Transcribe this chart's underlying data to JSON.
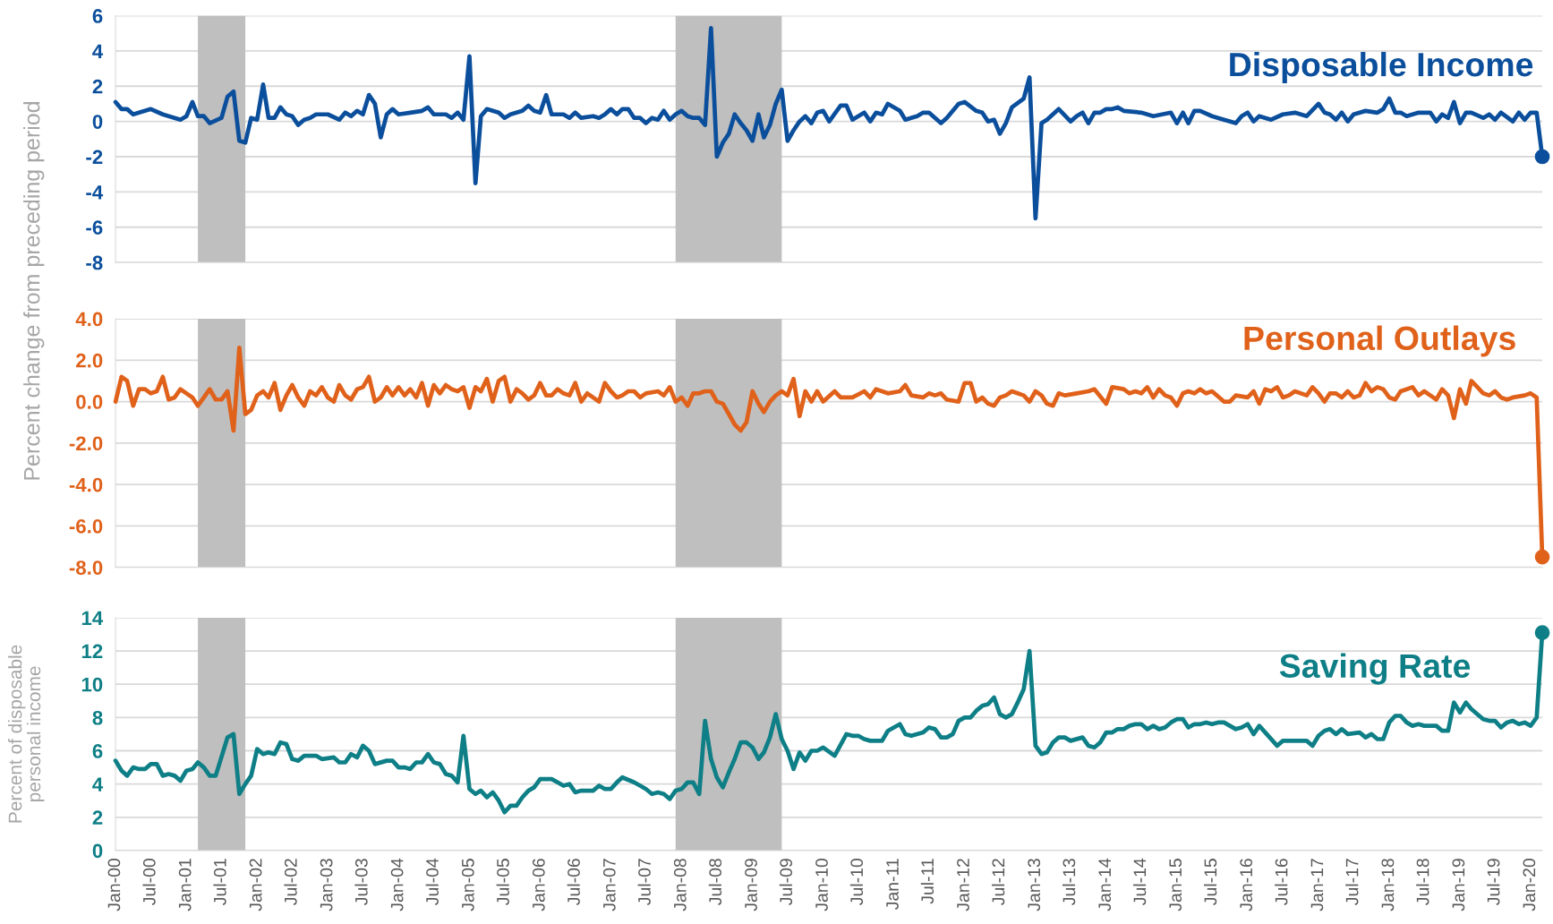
{
  "chart_data": [
    {
      "type": "line",
      "ylabel": "Percent change from preceding period",
      "tick_labels": "y",
      "grid": "y",
      "xlim": [
        "2000-01",
        "2020-03"
      ],
      "ylim": [
        -8,
        6
      ],
      "yticks": [
        -8,
        -6,
        -4,
        -2,
        0,
        2,
        4,
        6
      ],
      "bands": [
        {
          "axis": "x",
          "from": "2001-03",
          "to": "2001-11",
          "color": "#bfbfbf"
        },
        {
          "axis": "x",
          "from": "2007-12",
          "to": "2009-06",
          "color": "#bfbfbf"
        }
      ],
      "series": [
        {
          "name": "Disposable Income",
          "color": "#0b4f9c",
          "line_style": "solid",
          "x": [
            "2000-01",
            "2000-02",
            "2000-03",
            "2000-04",
            "2000-05",
            "2000-07",
            "2000-09",
            "2000-12",
            "2001-01",
            "2001-02",
            "2001-03",
            "2001-04",
            "2001-05",
            "2001-07",
            "2001-08",
            "2001-09",
            "2001-10",
            "2001-11",
            "2001-12",
            "2002-01",
            "2002-02",
            "2002-03",
            "2002-04",
            "2002-05",
            "2002-06",
            "2002-07",
            "2002-08",
            "2002-09",
            "2002-10",
            "2002-11",
            "2003-01",
            "2003-03",
            "2003-04",
            "2003-05",
            "2003-06",
            "2003-07",
            "2003-08",
            "2003-09",
            "2003-10",
            "2003-11",
            "2003-12",
            "2004-01",
            "2004-03",
            "2004-05",
            "2004-06",
            "2004-07",
            "2004-09",
            "2004-10",
            "2004-11",
            "2004-12",
            "2005-01",
            "2005-02",
            "2005-03",
            "2005-04",
            "2005-06",
            "2005-07",
            "2005-08",
            "2005-10",
            "2005-11",
            "2005-12",
            "2006-01",
            "2006-02",
            "2006-03",
            "2006-05",
            "2006-06",
            "2006-07",
            "2006-08",
            "2006-10",
            "2006-11",
            "2006-12",
            "2007-01",
            "2007-02",
            "2007-03",
            "2007-04",
            "2007-05",
            "2007-06",
            "2007-07",
            "2007-08",
            "2007-09",
            "2007-10",
            "2007-11",
            "2007-12",
            "2008-01",
            "2008-02",
            "2008-03",
            "2008-04",
            "2008-05",
            "2008-06",
            "2008-07",
            "2008-08",
            "2008-09",
            "2008-10",
            "2008-11",
            "2008-12",
            "2009-01",
            "2009-02",
            "2009-03",
            "2009-04",
            "2009-05",
            "2009-06",
            "2009-07",
            "2009-08",
            "2009-09",
            "2009-10",
            "2009-11",
            "2009-12",
            "2010-01",
            "2010-02",
            "2010-04",
            "2010-05",
            "2010-06",
            "2010-08",
            "2010-09",
            "2010-10",
            "2010-11",
            "2010-12",
            "2011-02",
            "2011-03",
            "2011-05",
            "2011-06",
            "2011-07",
            "2011-09",
            "2011-10",
            "2011-12",
            "2012-01",
            "2012-03",
            "2012-04",
            "2012-05",
            "2012-06",
            "2012-07",
            "2012-08",
            "2012-09",
            "2012-11",
            "2012-12",
            "2013-01",
            "2013-02",
            "2013-03",
            "2013-05",
            "2013-07",
            "2013-08",
            "2013-09",
            "2013-10",
            "2013-11",
            "2013-12",
            "2014-01",
            "2014-02",
            "2014-03",
            "2014-04",
            "2014-07",
            "2014-09",
            "2014-12",
            "2015-01",
            "2015-02",
            "2015-03",
            "2015-04",
            "2015-05",
            "2015-07",
            "2015-09",
            "2015-11",
            "2015-12",
            "2016-01",
            "2016-02",
            "2016-03",
            "2016-05",
            "2016-07",
            "2016-09",
            "2016-11",
            "2017-01",
            "2017-02",
            "2017-03",
            "2017-04",
            "2017-05",
            "2017-06",
            "2017-07",
            "2017-09",
            "2017-11",
            "2017-12",
            "2018-01",
            "2018-02",
            "2018-03",
            "2018-04",
            "2018-06",
            "2018-08",
            "2018-09",
            "2018-10",
            "2018-11",
            "2018-12",
            "2019-01",
            "2019-02",
            "2019-03",
            "2019-05",
            "2019-06",
            "2019-07",
            "2019-08",
            "2019-10",
            "2019-11",
            "2019-12",
            "2020-01",
            "2020-02",
            "2020-03"
          ],
          "values": [
            1.1,
            0.7,
            0.7,
            0.4,
            0.5,
            0.7,
            0.4,
            0.1,
            0.3,
            1.1,
            0.3,
            0.3,
            -0.1,
            0.2,
            1.4,
            1.7,
            -1.1,
            -1.2,
            0.2,
            0.1,
            2.1,
            0.2,
            0.2,
            0.8,
            0.4,
            0.3,
            -0.2,
            0.1,
            0.2,
            0.4,
            0.4,
            0.1,
            0.5,
            0.3,
            0.6,
            0.4,
            1.5,
            1.0,
            -0.9,
            0.4,
            0.7,
            0.4,
            0.5,
            0.6,
            0.8,
            0.4,
            0.4,
            0.2,
            0.5,
            0.1,
            3.7,
            -3.5,
            0.3,
            0.7,
            0.5,
            0.2,
            0.4,
            0.6,
            0.9,
            0.6,
            0.5,
            1.5,
            0.4,
            0.4,
            0.2,
            0.5,
            0.2,
            0.3,
            0.2,
            0.4,
            0.7,
            0.4,
            0.7,
            0.7,
            0.2,
            0.2,
            -0.1,
            0.2,
            0.1,
            0.6,
            0.1,
            0.4,
            0.6,
            0.3,
            0.2,
            0.2,
            -0.2,
            5.3,
            -2.0,
            -1.2,
            -0.7,
            0.4,
            -0.1,
            -0.5,
            -1.1,
            0.4,
            -0.9,
            -0.2,
            1.0,
            1.8,
            -1.1,
            -0.5,
            0.0,
            0.3,
            -0.1,
            0.5,
            0.6,
            0.0,
            0.9,
            0.9,
            0.1,
            0.5,
            0.0,
            0.5,
            0.4,
            1.0,
            0.6,
            0.1,
            0.3,
            0.5,
            0.5,
            -0.1,
            0.2,
            1.0,
            1.1,
            0.6,
            0.5,
            0.0,
            0.1,
            -0.7,
            -0.1,
            0.8,
            1.3,
            2.5,
            -5.5,
            -0.1,
            0.1,
            0.7,
            0.0,
            0.3,
            0.5,
            -0.1,
            0.5,
            0.5,
            0.7,
            0.7,
            0.8,
            0.6,
            0.5,
            0.3,
            0.5,
            -0.1,
            0.5,
            -0.1,
            0.6,
            0.6,
            0.3,
            0.1,
            -0.1,
            0.3,
            0.5,
            0.0,
            0.3,
            0.1,
            0.4,
            0.5,
            0.3,
            1.0,
            0.5,
            0.4,
            0.1,
            0.5,
            0.0,
            0.4,
            0.6,
            0.5,
            0.7,
            1.3,
            0.5,
            0.5,
            0.3,
            0.5,
            0.5,
            0.0,
            0.4,
            0.2,
            1.1,
            -0.1,
            0.5,
            0.5,
            0.2,
            0.4,
            0.1,
            0.5,
            0.0,
            0.5,
            0.1,
            0.5,
            0.5,
            -2.0
          ]
        }
      ]
    },
    {
      "type": "line",
      "tick_labels": "y",
      "grid": "y",
      "xlim": [
        "2000-01",
        "2020-03"
      ],
      "ylim": [
        -8,
        4
      ],
      "yticks": [
        {
          "value": -8,
          "label": "-8.0"
        },
        {
          "value": -6,
          "label": "-6.0"
        },
        {
          "value": -4,
          "label": "-4.0"
        },
        {
          "value": -2,
          "label": "-2.0"
        },
        {
          "value": 0,
          "label": "0.0"
        },
        {
          "value": 2,
          "label": "2.0"
        },
        {
          "value": 4,
          "label": "4.0"
        }
      ],
      "bands": [
        {
          "axis": "x",
          "from": "2001-03",
          "to": "2001-11",
          "color": "#bfbfbf"
        },
        {
          "axis": "x",
          "from": "2007-12",
          "to": "2009-06",
          "color": "#bfbfbf"
        }
      ],
      "series": [
        {
          "name": "Personal Outlays",
          "color": "#e0611a",
          "line_style": "solid",
          "x": [
            "2000-01",
            "2000-02",
            "2000-03",
            "2000-04",
            "2000-05",
            "2000-06",
            "2000-07",
            "2000-08",
            "2000-09",
            "2000-10",
            "2000-11",
            "2000-12",
            "2001-01",
            "2001-02",
            "2001-03",
            "2001-04",
            "2001-05",
            "2001-06",
            "2001-07",
            "2001-08",
            "2001-09",
            "2001-10",
            "2001-11",
            "2001-12",
            "2002-01",
            "2002-02",
            "2002-03",
            "2002-04",
            "2002-05",
            "2002-06",
            "2002-07",
            "2002-08",
            "2002-09",
            "2002-10",
            "2002-11",
            "2002-12",
            "2003-01",
            "2003-02",
            "2003-03",
            "2003-04",
            "2003-05",
            "2003-06",
            "2003-07",
            "2003-08",
            "2003-09",
            "2003-10",
            "2003-11",
            "2003-12",
            "2004-01",
            "2004-02",
            "2004-03",
            "2004-04",
            "2004-05",
            "2004-06",
            "2004-07",
            "2004-08",
            "2004-09",
            "2004-10",
            "2004-11",
            "2004-12",
            "2005-01",
            "2005-02",
            "2005-03",
            "2005-04",
            "2005-05",
            "2005-06",
            "2005-07",
            "2005-08",
            "2005-09",
            "2005-10",
            "2005-11",
            "2005-12",
            "2006-01",
            "2006-02",
            "2006-03",
            "2006-04",
            "2006-05",
            "2006-06",
            "2006-07",
            "2006-08",
            "2006-09",
            "2006-10",
            "2006-11",
            "2006-12",
            "2007-01",
            "2007-02",
            "2007-03",
            "2007-04",
            "2007-05",
            "2007-06",
            "2007-07",
            "2007-09",
            "2007-10",
            "2007-11",
            "2007-12",
            "2008-01",
            "2008-02",
            "2008-03",
            "2008-04",
            "2008-05",
            "2008-06",
            "2008-07",
            "2008-08",
            "2008-09",
            "2008-10",
            "2008-11",
            "2008-12",
            "2009-01",
            "2009-02",
            "2009-03",
            "2009-04",
            "2009-05",
            "2009-06",
            "2009-07",
            "2009-08",
            "2009-09",
            "2009-10",
            "2009-11",
            "2009-12",
            "2010-01",
            "2010-03",
            "2010-04",
            "2010-06",
            "2010-08",
            "2010-09",
            "2010-10",
            "2010-12",
            "2011-02",
            "2011-03",
            "2011-04",
            "2011-06",
            "2011-07",
            "2011-08",
            "2011-09",
            "2011-10",
            "2011-12",
            "2012-01",
            "2012-02",
            "2012-03",
            "2012-04",
            "2012-05",
            "2012-06",
            "2012-07",
            "2012-08",
            "2012-09",
            "2012-10",
            "2012-11",
            "2012-12",
            "2013-01",
            "2013-02",
            "2013-03",
            "2013-04",
            "2013-05",
            "2013-06",
            "2013-08",
            "2013-10",
            "2013-11",
            "2014-01",
            "2014-02",
            "2014-04",
            "2014-05",
            "2014-06",
            "2014-07",
            "2014-08",
            "2014-09",
            "2014-10",
            "2014-11",
            "2014-12",
            "2015-01",
            "2015-02",
            "2015-03",
            "2015-04",
            "2015-05",
            "2015-06",
            "2015-07",
            "2015-09",
            "2015-10",
            "2015-11",
            "2016-01",
            "2016-02",
            "2016-03",
            "2016-04",
            "2016-05",
            "2016-06",
            "2016-07",
            "2016-08",
            "2016-09",
            "2016-11",
            "2016-12",
            "2017-01",
            "2017-02",
            "2017-03",
            "2017-04",
            "2017-05",
            "2017-06",
            "2017-07",
            "2017-08",
            "2017-09",
            "2017-10",
            "2017-11",
            "2017-12",
            "2018-01",
            "2018-02",
            "2018-03",
            "2018-04",
            "2018-05",
            "2018-06",
            "2018-07",
            "2018-08",
            "2018-09",
            "2018-10",
            "2018-11",
            "2018-12",
            "2019-01",
            "2019-02",
            "2019-03",
            "2019-04",
            "2019-05",
            "2019-06",
            "2019-07",
            "2019-08",
            "2019-09",
            "2019-10",
            "2019-12",
            "2020-01",
            "2020-02",
            "2020-03"
          ],
          "values": [
            0.0,
            1.2,
            1.0,
            -0.2,
            0.6,
            0.6,
            0.4,
            0.5,
            1.2,
            0.1,
            0.2,
            0.6,
            0.4,
            0.2,
            -0.2,
            0.2,
            0.6,
            0.1,
            0.1,
            0.5,
            -1.4,
            2.6,
            -0.6,
            -0.4,
            0.3,
            0.5,
            0.2,
            0.9,
            -0.4,
            0.3,
            0.8,
            0.2,
            -0.2,
            0.5,
            0.3,
            0.7,
            0.2,
            0.0,
            0.8,
            0.3,
            0.1,
            0.6,
            0.7,
            1.2,
            0.0,
            0.2,
            0.7,
            0.3,
            0.7,
            0.3,
            0.6,
            0.2,
            0.9,
            -0.2,
            0.8,
            0.4,
            0.8,
            0.6,
            0.5,
            0.7,
            -0.3,
            0.7,
            0.5,
            1.1,
            0.0,
            1.0,
            1.2,
            0.0,
            0.6,
            0.4,
            0.1,
            0.3,
            0.9,
            0.3,
            0.3,
            0.6,
            0.4,
            0.3,
            0.9,
            0.0,
            0.4,
            0.2,
            0.0,
            0.9,
            0.5,
            0.2,
            0.3,
            0.5,
            0.5,
            0.2,
            0.4,
            0.5,
            0.3,
            0.7,
            0.0,
            0.2,
            -0.2,
            0.4,
            0.4,
            0.5,
            0.5,
            0.0,
            -0.1,
            -0.6,
            -1.1,
            -1.4,
            -1.0,
            0.5,
            -0.1,
            -0.5,
            0.0,
            0.3,
            0.5,
            0.3,
            1.1,
            -0.7,
            0.5,
            0.0,
            0.5,
            0.0,
            0.5,
            0.2,
            0.2,
            0.5,
            0.2,
            0.6,
            0.4,
            0.5,
            0.8,
            0.3,
            0.2,
            0.4,
            0.3,
            0.4,
            0.1,
            0.0,
            0.9,
            0.9,
            0.0,
            0.2,
            -0.1,
            -0.2,
            0.2,
            0.3,
            0.5,
            0.4,
            0.3,
            0.0,
            0.5,
            0.3,
            -0.1,
            -0.2,
            0.4,
            0.3,
            0.4,
            0.5,
            0.6,
            -0.1,
            0.7,
            0.6,
            0.4,
            0.5,
            0.4,
            0.7,
            0.2,
            0.6,
            0.3,
            0.2,
            -0.2,
            0.4,
            0.5,
            0.4,
            0.6,
            0.4,
            0.5,
            0.0,
            0.0,
            0.3,
            0.2,
            0.5,
            -0.1,
            0.6,
            0.5,
            0.7,
            0.2,
            0.3,
            0.5,
            0.3,
            0.7,
            0.4,
            0.0,
            0.4,
            0.4,
            0.2,
            0.5,
            0.2,
            0.3,
            0.9,
            0.5,
            0.7,
            0.6,
            0.2,
            0.1,
            0.5,
            0.6,
            0.7,
            0.3,
            0.5,
            0.3,
            0.1,
            0.6,
            0.3,
            -0.8,
            0.6,
            -0.1,
            1.0,
            0.7,
            0.4,
            0.3,
            0.5,
            0.2,
            0.1,
            0.2,
            0.3,
            0.4,
            0.2,
            -7.5
          ]
        }
      ]
    },
    {
      "type": "line",
      "ylabel": "Percent of disposable\npersonal income",
      "grid": "y",
      "xlim": [
        "2000-01",
        "2020-03"
      ],
      "ylim": [
        0,
        14
      ],
      "yticks": [
        0,
        2,
        4,
        6,
        8,
        10,
        12,
        14
      ],
      "xticks": [
        {
          "value": "2000-01",
          "label": "Jan-00"
        },
        {
          "value": "2000-07",
          "label": "Jul-00"
        },
        {
          "value": "2001-01",
          "label": "Jan-01"
        },
        {
          "value": "2001-07",
          "label": "Jul-01"
        },
        {
          "value": "2002-01",
          "label": "Jan-02"
        },
        {
          "value": "2002-07",
          "label": "Jul-02"
        },
        {
          "value": "2003-01",
          "label": "Jan-03"
        },
        {
          "value": "2003-07",
          "label": "Jul-03"
        },
        {
          "value": "2004-01",
          "label": "Jan-04"
        },
        {
          "value": "2004-07",
          "label": "Jul-04"
        },
        {
          "value": "2005-01",
          "label": "Jan-05"
        },
        {
          "value": "2005-07",
          "label": "Jul-05"
        },
        {
          "value": "2006-01",
          "label": "Jan-06"
        },
        {
          "value": "2006-07",
          "label": "Jul-06"
        },
        {
          "value": "2007-01",
          "label": "Jan-07"
        },
        {
          "value": "2007-07",
          "label": "Jul-07"
        },
        {
          "value": "2008-01",
          "label": "Jan-08"
        },
        {
          "value": "2008-07",
          "label": "Jul-08"
        },
        {
          "value": "2009-01",
          "label": "Jan-09"
        },
        {
          "value": "2009-07",
          "label": "Jul-09"
        },
        {
          "value": "2010-01",
          "label": "Jan-10"
        },
        {
          "value": "2010-07",
          "label": "Jul-10"
        },
        {
          "value": "2011-01",
          "label": "Jan-11"
        },
        {
          "value": "2011-07",
          "label": "Jul-11"
        },
        {
          "value": "2012-01",
          "label": "Jan-12"
        },
        {
          "value": "2012-07",
          "label": "Jul-12"
        },
        {
          "value": "2013-01",
          "label": "Jan-13"
        },
        {
          "value": "2013-07",
          "label": "Jul-13"
        },
        {
          "value": "2014-01",
          "label": "Jan-14"
        },
        {
          "value": "2014-07",
          "label": "Jul-14"
        },
        {
          "value": "2015-01",
          "label": "Jan-15"
        },
        {
          "value": "2015-07",
          "label": "Jul-15"
        },
        {
          "value": "2016-01",
          "label": "Jan-16"
        },
        {
          "value": "2016-07",
          "label": "Jul-16"
        },
        {
          "value": "2017-01",
          "label": "Jan-17"
        },
        {
          "value": "2017-07",
          "label": "Jul-17"
        },
        {
          "value": "2018-01",
          "label": "Jan-18"
        },
        {
          "value": "2018-07",
          "label": "Jul-18"
        },
        {
          "value": "2019-01",
          "label": "Jan-19"
        },
        {
          "value": "2019-07",
          "label": "Jul-19"
        },
        {
          "value": "2020-01",
          "label": "Jan-20"
        }
      ],
      "bands": [
        {
          "axis": "x",
          "from": "2001-03",
          "to": "2001-11",
          "color": "#bfbfbf"
        },
        {
          "axis": "x",
          "from": "2007-12",
          "to": "2009-06",
          "color": "#bfbfbf"
        }
      ],
      "series": [
        {
          "name": "Saving Rate",
          "color": "#0e7f86",
          "line_style": "solid",
          "x": [
            "2000-01",
            "2000-02",
            "2000-03",
            "2000-04",
            "2000-05",
            "2000-06",
            "2000-07",
            "2000-08",
            "2000-09",
            "2000-10",
            "2000-11",
            "2000-12",
            "2001-01",
            "2001-02",
            "2001-03",
            "2001-04",
            "2001-05",
            "2001-06",
            "2001-08",
            "2001-09",
            "2001-10",
            "2001-11",
            "2001-12",
            "2002-01",
            "2002-02",
            "2002-03",
            "2002-04",
            "2002-05",
            "2002-06",
            "2002-07",
            "2002-08",
            "2002-09",
            "2002-11",
            "2002-12",
            "2003-02",
            "2003-03",
            "2003-04",
            "2003-05",
            "2003-06",
            "2003-07",
            "2003-08",
            "2003-09",
            "2003-11",
            "2003-12",
            "2004-01",
            "2004-02",
            "2004-03",
            "2004-04",
            "2004-05",
            "2004-06",
            "2004-07",
            "2004-08",
            "2004-09",
            "2004-10",
            "2004-11",
            "2004-12",
            "2005-01",
            "2005-02",
            "2005-03",
            "2005-04",
            "2005-05",
            "2005-06",
            "2005-07",
            "2005-08",
            "2005-09",
            "2005-10",
            "2005-11",
            "2005-12",
            "2006-01",
            "2006-02",
            "2006-03",
            "2006-04",
            "2006-05",
            "2006-06",
            "2006-07",
            "2006-08",
            "2006-09",
            "2006-10",
            "2006-11",
            "2006-12",
            "2007-01",
            "2007-02",
            "2007-03",
            "2007-05",
            "2007-06",
            "2007-07",
            "2007-08",
            "2007-09",
            "2007-10",
            "2007-11",
            "2007-12",
            "2008-01",
            "2008-02",
            "2008-03",
            "2008-04",
            "2008-05",
            "2008-06",
            "2008-07",
            "2008-08",
            "2008-09",
            "2008-10",
            "2008-11",
            "2008-12",
            "2009-01",
            "2009-02",
            "2009-03",
            "2009-04",
            "2009-05",
            "2009-06",
            "2009-07",
            "2009-08",
            "2009-09",
            "2009-10",
            "2009-11",
            "2009-12",
            "2010-01",
            "2010-03",
            "2010-05",
            "2010-06",
            "2010-07",
            "2010-08",
            "2010-09",
            "2010-11",
            "2010-12",
            "2011-02",
            "2011-03",
            "2011-04",
            "2011-06",
            "2011-07",
            "2011-08",
            "2011-09",
            "2011-10",
            "2011-11",
            "2011-12",
            "2012-01",
            "2012-02",
            "2012-03",
            "2012-04",
            "2012-05",
            "2012-06",
            "2012-07",
            "2012-08",
            "2012-09",
            "2012-10",
            "2012-11",
            "2012-12",
            "2013-01",
            "2013-02",
            "2013-03",
            "2013-04",
            "2013-05",
            "2013-06",
            "2013-07",
            "2013-09",
            "2013-10",
            "2013-11",
            "2013-12",
            "2014-01",
            "2014-02",
            "2014-03",
            "2014-04",
            "2014-05",
            "2014-06",
            "2014-07",
            "2014-08",
            "2014-09",
            "2014-10",
            "2014-11",
            "2014-12",
            "2015-01",
            "2015-02",
            "2015-03",
            "2015-04",
            "2015-05",
            "2015-06",
            "2015-07",
            "2015-08",
            "2015-09",
            "2015-11",
            "2015-12",
            "2016-01",
            "2016-02",
            "2016-03",
            "2016-04",
            "2016-06",
            "2016-07",
            "2016-09",
            "2016-11",
            "2016-12",
            "2017-01",
            "2017-02",
            "2017-03",
            "2017-04",
            "2017-05",
            "2017-06",
            "2017-08",
            "2017-09",
            "2017-10",
            "2017-11",
            "2017-12",
            "2018-01",
            "2018-02",
            "2018-03",
            "2018-04",
            "2018-05",
            "2018-06",
            "2018-07",
            "2018-09",
            "2018-10",
            "2018-11",
            "2018-12",
            "2019-01",
            "2019-02",
            "2019-03",
            "2019-05",
            "2019-06",
            "2019-07",
            "2019-08",
            "2019-09",
            "2019-10",
            "2019-11",
            "2019-12",
            "2020-01",
            "2020-02",
            "2020-03"
          ],
          "values": [
            5.4,
            4.8,
            4.5,
            5.0,
            4.9,
            4.9,
            5.2,
            5.2,
            4.5,
            4.6,
            4.5,
            4.2,
            4.8,
            4.9,
            5.3,
            5.0,
            4.5,
            4.5,
            6.8,
            7.0,
            3.4,
            4.0,
            4.5,
            6.1,
            5.8,
            5.9,
            5.8,
            6.5,
            6.4,
            5.5,
            5.4,
            5.7,
            5.7,
            5.5,
            5.6,
            5.3,
            5.3,
            5.8,
            5.6,
            6.3,
            6.0,
            5.2,
            5.4,
            5.4,
            5.0,
            5.0,
            4.9,
            5.3,
            5.3,
            5.8,
            5.3,
            5.2,
            4.6,
            4.5,
            4.1,
            6.9,
            3.7,
            3.4,
            3.6,
            3.2,
            3.5,
            3.0,
            2.3,
            2.7,
            2.7,
            3.2,
            3.6,
            3.8,
            4.3,
            4.3,
            4.3,
            4.1,
            3.9,
            4.0,
            3.5,
            3.6,
            3.6,
            3.6,
            3.9,
            3.7,
            3.7,
            4.1,
            4.4,
            4.1,
            3.9,
            3.7,
            3.4,
            3.5,
            3.4,
            3.1,
            3.6,
            3.7,
            4.1,
            4.1,
            3.4,
            7.8,
            5.5,
            4.4,
            3.8,
            4.7,
            5.5,
            6.5,
            6.5,
            6.2,
            5.5,
            5.9,
            6.8,
            8.2,
            6.7,
            6.0,
            4.9,
            5.9,
            5.4,
            6.0,
            6.0,
            6.2,
            5.7,
            7.0,
            6.9,
            6.9,
            6.7,
            6.6,
            6.6,
            7.2,
            7.6,
            7.0,
            6.9,
            7.1,
            7.4,
            7.3,
            6.8,
            6.8,
            7.0,
            7.8,
            8.0,
            8.0,
            8.4,
            8.7,
            8.8,
            9.2,
            8.2,
            8.0,
            8.2,
            8.9,
            9.7,
            12.0,
            6.3,
            5.8,
            5.9,
            6.5,
            6.8,
            6.8,
            6.6,
            6.8,
            6.3,
            6.2,
            6.5,
            7.1,
            7.1,
            7.3,
            7.3,
            7.5,
            7.6,
            7.6,
            7.3,
            7.5,
            7.3,
            7.4,
            7.7,
            7.9,
            7.9,
            7.4,
            7.6,
            7.6,
            7.7,
            7.6,
            7.7,
            7.7,
            7.3,
            7.4,
            7.6,
            7.0,
            7.5,
            7.1,
            6.3,
            6.6,
            6.6,
            6.6,
            6.3,
            6.9,
            7.2,
            7.3,
            7.0,
            7.3,
            7.0,
            7.1,
            6.8,
            7.0,
            6.7,
            6.7,
            7.7,
            8.1,
            8.1,
            7.7,
            7.5,
            7.6,
            7.5,
            7.5,
            7.2,
            7.2,
            8.9,
            8.3,
            8.9,
            8.5,
            7.9,
            7.8,
            7.8,
            7.4,
            7.7,
            7.8,
            7.6,
            7.7,
            7.5,
            8.0,
            13.1
          ]
        }
      ]
    }
  ]
}
